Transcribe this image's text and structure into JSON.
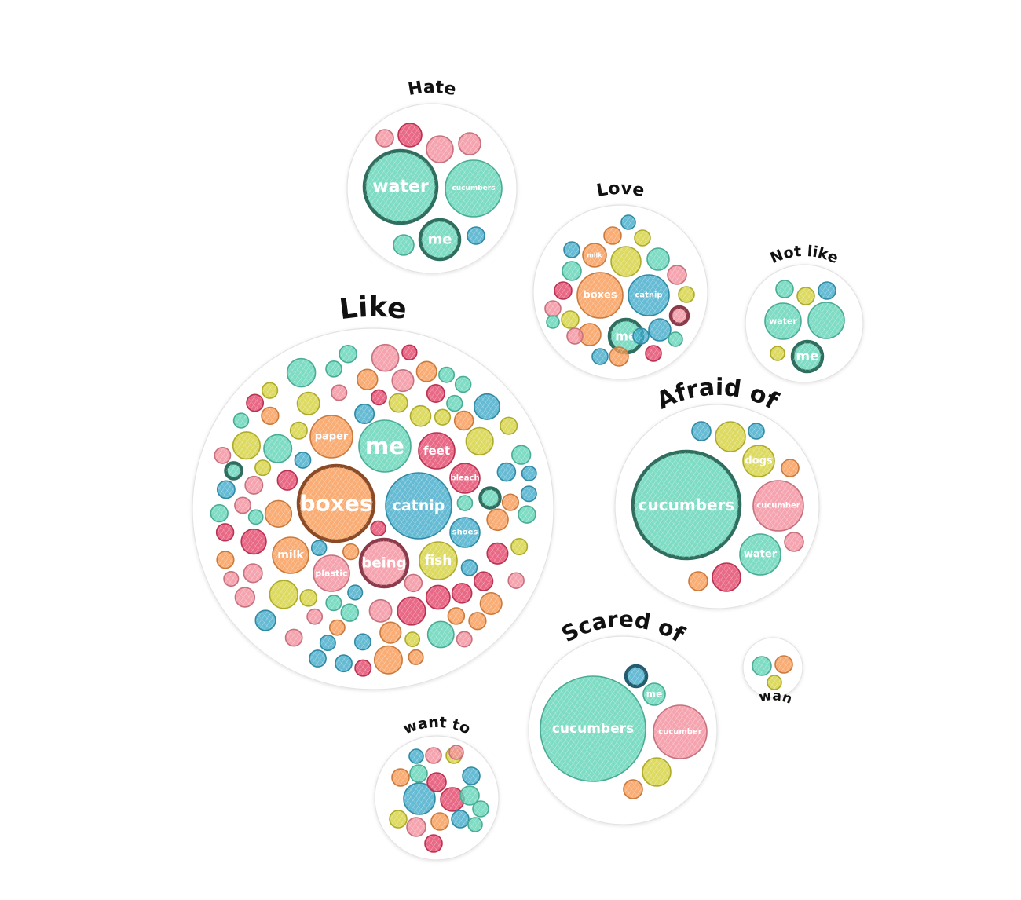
{
  "colors": {
    "teal": "#5ad2b4",
    "teal_dark": "#2f6e5f",
    "orange": "#f7954b",
    "orange_dark": "#8a4a25",
    "blue": "#3aa8c8",
    "blue_dark": "#235c6e",
    "yellow": "#d4d035",
    "pink": "#f28a98",
    "pink_dark": "#8c3a4a",
    "red": "#e23d63",
    "red_dark": "#7a2036"
  },
  "groups": [
    {
      "id": "hate",
      "title": "Hate",
      "words": [
        {
          "label": "water",
          "color": "teal",
          "highlight": true
        },
        {
          "label": "cucumbers",
          "color": "teal"
        },
        {
          "label": "me",
          "color": "teal",
          "highlight": true
        },
        {
          "color": "pink"
        },
        {
          "color": "red"
        },
        {
          "color": "pink"
        },
        {
          "color": "pink"
        },
        {
          "color": "teal"
        },
        {
          "color": "blue"
        }
      ]
    },
    {
      "id": "love",
      "title": "Love",
      "words": [
        {
          "label": "boxes",
          "color": "orange"
        },
        {
          "label": "catnip",
          "color": "blue"
        },
        {
          "label": "me",
          "color": "teal",
          "highlight": true
        },
        {
          "label": "milk",
          "color": "orange"
        },
        {
          "color": "yellow"
        },
        {
          "color": "teal"
        },
        {
          "color": "pink"
        },
        {
          "color": "red"
        },
        {
          "color": "blue"
        },
        {
          "color": "orange"
        },
        {
          "color": "yellow"
        },
        {
          "color": "blue"
        },
        {
          "color": "teal"
        },
        {
          "color": "yellow"
        },
        {
          "color": "pink"
        },
        {
          "color": "orange"
        },
        {
          "color": "blue"
        },
        {
          "color": "pink",
          "highlight": true
        },
        {
          "color": "yellow"
        },
        {
          "color": "orange"
        },
        {
          "color": "blue"
        },
        {
          "color": "teal"
        },
        {
          "color": "pink"
        },
        {
          "color": "red"
        },
        {
          "color": "blue"
        },
        {
          "color": "teal"
        }
      ]
    },
    {
      "id": "not-like",
      "title": "Not like",
      "words": [
        {
          "label": "water",
          "color": "teal"
        },
        {
          "color": "teal"
        },
        {
          "label": "me",
          "color": "teal",
          "highlight": true
        },
        {
          "color": "teal"
        },
        {
          "color": "yellow"
        },
        {
          "color": "blue"
        },
        {
          "color": "yellow"
        }
      ]
    },
    {
      "id": "like",
      "title": "Like",
      "words": [
        {
          "label": "boxes",
          "color": "orange",
          "highlight": true
        },
        {
          "label": "catnip",
          "color": "blue"
        },
        {
          "label": "me",
          "color": "teal"
        },
        {
          "label": "being",
          "color": "pink",
          "highlight": true
        },
        {
          "label": "fish",
          "color": "yellow"
        },
        {
          "label": "paper",
          "color": "orange"
        },
        {
          "label": "feet",
          "color": "red"
        },
        {
          "label": "milk",
          "color": "orange"
        },
        {
          "label": "plastic",
          "color": "pink"
        },
        {
          "label": "bleach",
          "color": "red"
        },
        {
          "label": "shoes",
          "color": "blue"
        }
      ],
      "filler_count": 150
    },
    {
      "id": "afraid-of",
      "title": "Afraid of",
      "words": [
        {
          "label": "cucumbers",
          "color": "teal",
          "highlight": true
        },
        {
          "label": "cucumber",
          "color": "pink"
        },
        {
          "label": "water",
          "color": "teal"
        },
        {
          "label": "dogs",
          "color": "yellow"
        },
        {
          "color": "yellow"
        },
        {
          "color": "blue"
        },
        {
          "color": "blue"
        },
        {
          "color": "orange"
        },
        {
          "color": "pink"
        },
        {
          "color": "red"
        },
        {
          "color": "orange"
        }
      ]
    },
    {
      "id": "scared-of",
      "title": "Scared of",
      "words": [
        {
          "label": "cucumbers",
          "color": "teal"
        },
        {
          "label": "cucumber",
          "color": "pink"
        },
        {
          "label": "me",
          "color": "teal"
        },
        {
          "color": "blue",
          "highlight": true
        },
        {
          "color": "yellow"
        },
        {
          "color": "orange"
        }
      ]
    },
    {
      "id": "not-want-to",
      "title": "Not want to",
      "words": [
        {
          "color": "teal"
        },
        {
          "color": "orange"
        },
        {
          "color": "yellow"
        }
      ]
    },
    {
      "id": "want-to",
      "title": "want to",
      "words": [
        {
          "color": "blue"
        },
        {
          "color": "red"
        },
        {
          "color": "orange"
        },
        {
          "color": "teal"
        },
        {
          "color": "pink"
        },
        {
          "color": "yellow"
        },
        {
          "color": "blue"
        },
        {
          "color": "red"
        },
        {
          "color": "teal"
        },
        {
          "color": "pink"
        },
        {
          "color": "orange"
        },
        {
          "color": "blue"
        },
        {
          "color": "teal"
        },
        {
          "color": "yellow"
        },
        {
          "color": "pink"
        },
        {
          "color": "red"
        },
        {
          "color": "blue"
        },
        {
          "color": "teal"
        }
      ]
    }
  ]
}
